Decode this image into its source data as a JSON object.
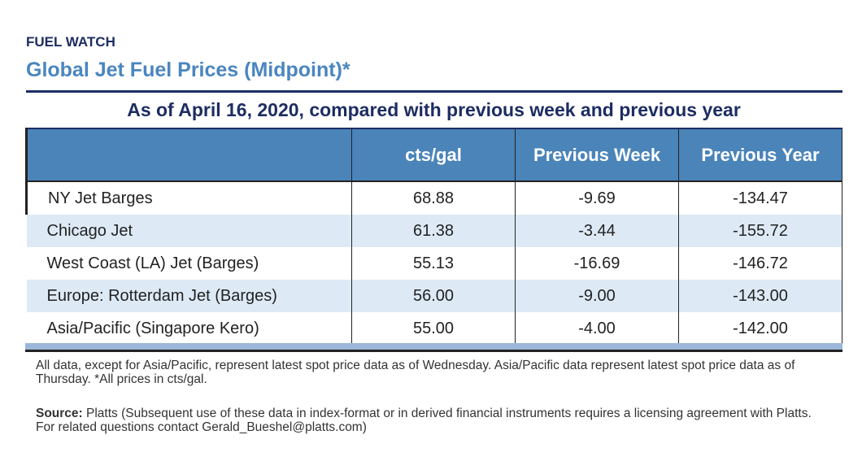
{
  "kicker": "FUEL WATCH",
  "title": "Global Jet Fuel Prices (Midpoint)*",
  "subtitle": "As of April 16, 2020, compared with previous week and previous year",
  "table": {
    "headers": [
      "",
      "cts/gal",
      "Previous Week",
      "Previous Year"
    ],
    "rows": [
      [
        "NY Jet Barges",
        "68.88",
        "-9.69",
        "-134.47"
      ],
      [
        "Chicago Jet",
        "61.38",
        "-3.44",
        "-155.72"
      ],
      [
        "West Coast (LA) Jet (Barges)",
        "55.13",
        "-16.69",
        "-146.72"
      ],
      [
        "Europe: Rotterdam Jet (Barges)",
        "56.00",
        "-9.00",
        "-143.00"
      ],
      [
        "Asia/Pacific (Singapore Kero)",
        "55.00",
        "-4.00",
        "-142.00"
      ]
    ]
  },
  "note": "All data, except for Asia/Pacific, represent latest spot price data as of Wednesday. Asia/Pacific data represent latest spot price data as of Thursday. *All prices in cts/gal.",
  "source_label": "Source:",
  "source_text": " Platts (Subsequent use of these data in index-format or in derived financial instruments requires a licensing agreement with Platts. For related questions contact Gerald_Bueshel@platts.com)",
  "colors": {
    "navy": "#1d2d62",
    "header_blue": "#4a84b9",
    "title_blue": "#4a86bf",
    "row_alt": "#ddeaf6"
  }
}
